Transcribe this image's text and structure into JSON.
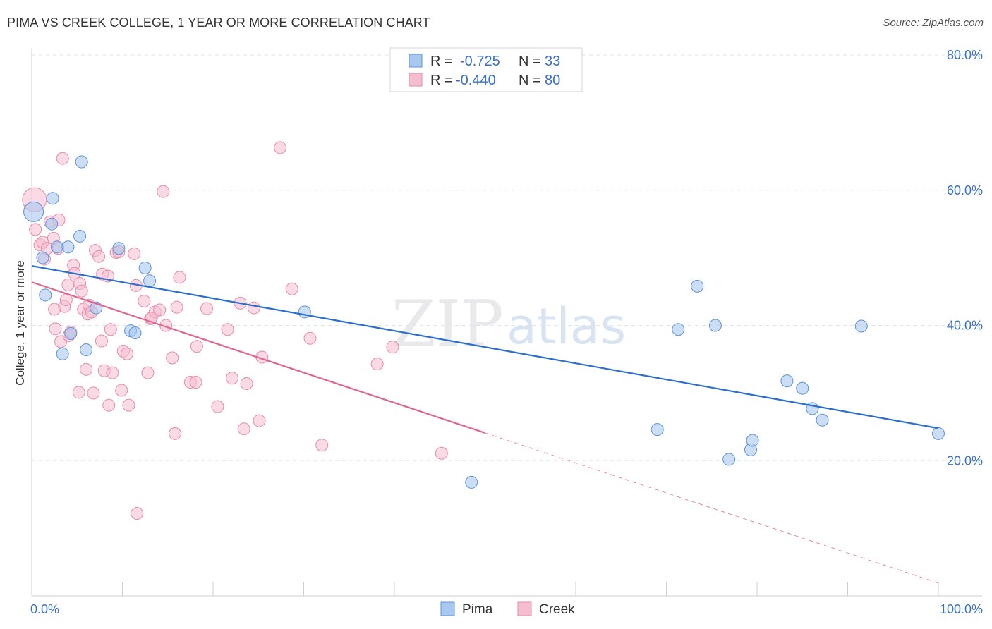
{
  "header": {
    "title": "PIMA VS CREEK COLLEGE, 1 YEAR OR MORE CORRELATION CHART",
    "source": "Source: ZipAtlas.com"
  },
  "watermark": {
    "zip": "ZIP",
    "atlas": "atlas"
  },
  "colors": {
    "pima_fill": "#a9c8ef",
    "pima_stroke": "#5b93db",
    "pima_line": "#2b6fce",
    "creek_fill": "#f5bdd0",
    "creek_stroke": "#e88aa9",
    "creek_line": "#e06690",
    "tick_text": "#3a72c8",
    "grid": "#e3e3e8"
  },
  "legend": {
    "rows": [
      {
        "r_label": "R =",
        "r_value": "-0.725",
        "n_label": "N =",
        "n_value": "33"
      },
      {
        "r_label": "R =",
        "r_value": "-0.440",
        "n_label": "N =",
        "n_value": "80"
      }
    ]
  },
  "bottom_legend": {
    "pima": "Pima",
    "creek": "Creek"
  },
  "chart_data": {
    "type": "scatter",
    "title": "PIMA VS CREEK COLLEGE, 1 YEAR OR MORE CORRELATION CHART",
    "xlabel": "",
    "ylabel": "College, 1 year or more",
    "xlim": [
      0,
      100
    ],
    "ylim": [
      0,
      80
    ],
    "x_tick_labels": [
      "0.0%",
      "100.0%"
    ],
    "y_tick_labels": [
      "20.0%",
      "40.0%",
      "60.0%",
      "80.0%"
    ],
    "y_ticks": [
      20,
      40,
      60,
      80
    ],
    "grid": true,
    "legend_position": "top-center",
    "series": [
      {
        "name": "Pima",
        "r": -0.725,
        "n": 33,
        "trend": {
          "x0": 0,
          "y0": 48.8,
          "x1": 100,
          "y1": 24.8
        },
        "points": [
          [
            0.2,
            56.8
          ],
          [
            1.2,
            50.0
          ],
          [
            1.5,
            44.5
          ],
          [
            2.2,
            55.0
          ],
          [
            2.3,
            58.8
          ],
          [
            2.8,
            51.6
          ],
          [
            3.4,
            35.8
          ],
          [
            4.0,
            51.6
          ],
          [
            4.3,
            38.8
          ],
          [
            5.3,
            53.2
          ],
          [
            5.5,
            64.2
          ],
          [
            6.0,
            36.4
          ],
          [
            7.1,
            42.6
          ],
          [
            9.6,
            51.4
          ],
          [
            10.9,
            39.2
          ],
          [
            11.4,
            38.9
          ],
          [
            12.5,
            48.5
          ],
          [
            13.0,
            46.6
          ],
          [
            30.1,
            42.0
          ],
          [
            48.5,
            16.8
          ],
          [
            69.0,
            24.6
          ],
          [
            71.3,
            39.4
          ],
          [
            73.4,
            45.8
          ],
          [
            75.4,
            40.0
          ],
          [
            76.9,
            20.2
          ],
          [
            79.3,
            21.6
          ],
          [
            79.5,
            23.0
          ],
          [
            83.3,
            31.8
          ],
          [
            85.0,
            30.7
          ],
          [
            86.1,
            27.7
          ],
          [
            87.2,
            26.0
          ],
          [
            91.5,
            39.9
          ],
          [
            100.0,
            24.0
          ]
        ]
      },
      {
        "name": "Creek",
        "r": -0.44,
        "n": 80,
        "trend": {
          "x0": 0,
          "y0": 46.4,
          "x1": 50,
          "y1": 24.1,
          "dashed_to": {
            "x": 100,
            "y": 1.9
          }
        },
        "points": [
          [
            0.3,
            58.6
          ],
          [
            0.4,
            54.2
          ],
          [
            0.9,
            51.9
          ],
          [
            1.2,
            52.3
          ],
          [
            1.4,
            49.8
          ],
          [
            1.7,
            51.4
          ],
          [
            2.0,
            55.3
          ],
          [
            2.4,
            52.9
          ],
          [
            2.5,
            42.4
          ],
          [
            2.6,
            39.5
          ],
          [
            2.9,
            51.4
          ],
          [
            3.0,
            55.6
          ],
          [
            3.2,
            37.6
          ],
          [
            3.4,
            64.7
          ],
          [
            3.6,
            42.8
          ],
          [
            3.8,
            43.8
          ],
          [
            4.0,
            46.0
          ],
          [
            4.1,
            38.5
          ],
          [
            4.3,
            39.0
          ],
          [
            4.6,
            48.9
          ],
          [
            4.7,
            47.7
          ],
          [
            5.2,
            30.1
          ],
          [
            5.3,
            46.2
          ],
          [
            5.5,
            45.1
          ],
          [
            5.7,
            42.4
          ],
          [
            6.0,
            33.5
          ],
          [
            6.2,
            41.7
          ],
          [
            6.3,
            43.0
          ],
          [
            6.6,
            42.0
          ],
          [
            6.8,
            30.0
          ],
          [
            7.0,
            51.1
          ],
          [
            7.4,
            50.2
          ],
          [
            7.7,
            37.7
          ],
          [
            7.8,
            47.6
          ],
          [
            8.0,
            33.3
          ],
          [
            8.4,
            47.3
          ],
          [
            8.5,
            28.2
          ],
          [
            8.7,
            39.4
          ],
          [
            8.9,
            33.0
          ],
          [
            9.3,
            50.8
          ],
          [
            9.9,
            30.4
          ],
          [
            10.1,
            36.2
          ],
          [
            10.5,
            35.8
          ],
          [
            10.7,
            28.2
          ],
          [
            11.3,
            50.6
          ],
          [
            11.5,
            45.9
          ],
          [
            11.6,
            12.2
          ],
          [
            12.4,
            43.6
          ],
          [
            12.8,
            33.0
          ],
          [
            13.1,
            41.0
          ],
          [
            13.6,
            42.0
          ],
          [
            14.1,
            42.3
          ],
          [
            14.5,
            59.8
          ],
          [
            14.8,
            40.0
          ],
          [
            15.5,
            35.2
          ],
          [
            15.8,
            24.0
          ],
          [
            16.0,
            42.7
          ],
          [
            16.3,
            47.1
          ],
          [
            17.5,
            31.6
          ],
          [
            18.1,
            31.6
          ],
          [
            18.2,
            36.9
          ],
          [
            19.3,
            42.5
          ],
          [
            20.5,
            28.0
          ],
          [
            21.6,
            39.4
          ],
          [
            22.1,
            32.2
          ],
          [
            23.0,
            43.3
          ],
          [
            23.4,
            24.7
          ],
          [
            23.7,
            31.4
          ],
          [
            24.5,
            42.6
          ],
          [
            25.1,
            25.9
          ],
          [
            25.4,
            35.3
          ],
          [
            27.4,
            66.3
          ],
          [
            28.7,
            45.4
          ],
          [
            30.7,
            38.1
          ],
          [
            32.0,
            22.3
          ],
          [
            38.1,
            34.3
          ],
          [
            39.8,
            36.8
          ],
          [
            45.2,
            21.1
          ],
          [
            13.2,
            41.1
          ],
          [
            9.6,
            50.9
          ]
        ]
      }
    ]
  }
}
